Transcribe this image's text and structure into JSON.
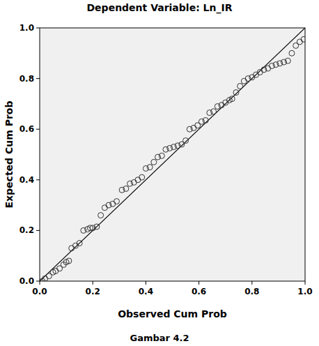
{
  "chart_data": {
    "type": "scatter",
    "title": "Dependent Variable: Ln_IR",
    "caption": "Gambar 4.2",
    "x_label": "Observed Cum Prob",
    "y_label": "Expected Cum Prob",
    "xlim": [
      0,
      1
    ],
    "ylim": [
      0,
      1
    ],
    "xticks": [
      {
        "value": 0,
        "label": "0.0"
      },
      0.2,
      0.4,
      0.6,
      0.8,
      {
        "value": 1,
        "label": "1.0"
      }
    ],
    "yticks": [
      {
        "value": 0,
        "label": "0.0"
      },
      0.2,
      0.4,
      0.6,
      0.8,
      {
        "value": 1,
        "label": "1.0"
      }
    ],
    "grid": false,
    "marker": "circle",
    "color": "#333333",
    "x": [
      0.01,
      0.02,
      0.035,
      0.05,
      0.06,
      0.075,
      0.09,
      0.1,
      0.11,
      0.12,
      0.135,
      0.15,
      0.165,
      0.18,
      0.19,
      0.2,
      0.215,
      0.23,
      0.245,
      0.26,
      0.275,
      0.29,
      0.31,
      0.325,
      0.34,
      0.355,
      0.37,
      0.385,
      0.4,
      0.415,
      0.43,
      0.445,
      0.46,
      0.475,
      0.49,
      0.505,
      0.52,
      0.535,
      0.55,
      0.565,
      0.58,
      0.595,
      0.61,
      0.625,
      0.64,
      0.655,
      0.67,
      0.685,
      0.7,
      0.715,
      0.725,
      0.74,
      0.755,
      0.77,
      0.785,
      0.8,
      0.815,
      0.83,
      0.845,
      0.86,
      0.875,
      0.89,
      0.905,
      0.92,
      0.935,
      0.95,
      0.965,
      0.98,
      0.995
    ],
    "values": [
      0.0,
      0.01,
      0.02,
      0.035,
      0.04,
      0.05,
      0.065,
      0.075,
      0.08,
      0.13,
      0.14,
      0.15,
      0.2,
      0.205,
      0.21,
      0.21,
      0.215,
      0.26,
      0.29,
      0.3,
      0.305,
      0.315,
      0.36,
      0.365,
      0.385,
      0.39,
      0.4,
      0.41,
      0.445,
      0.45,
      0.47,
      0.49,
      0.495,
      0.52,
      0.525,
      0.53,
      0.535,
      0.54,
      0.555,
      0.6,
      0.605,
      0.615,
      0.63,
      0.635,
      0.665,
      0.67,
      0.69,
      0.695,
      0.705,
      0.715,
      0.72,
      0.745,
      0.77,
      0.79,
      0.8,
      0.805,
      0.815,
      0.825,
      0.835,
      0.84,
      0.85,
      0.855,
      0.86,
      0.865,
      0.87,
      0.9,
      0.93,
      0.945,
      0.955
    ]
  }
}
